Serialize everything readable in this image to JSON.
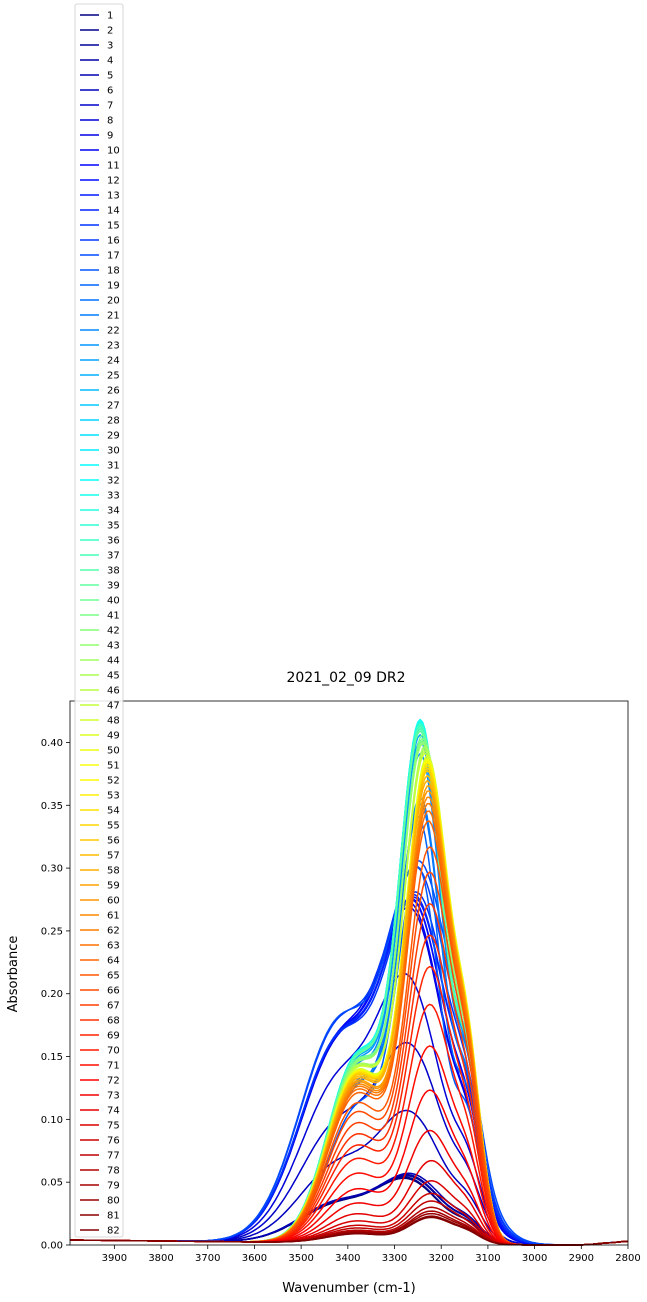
{
  "chart_data": {
    "type": "line",
    "title": "2021_02_09 DR2",
    "xlabel": "Wavenumber (cm-1)",
    "ylabel": "Absorbance",
    "xlim": [
      3995,
      2800
    ],
    "ylim": [
      0.0,
      0.433
    ],
    "x_reversed": true,
    "xticks": [
      3900,
      3800,
      3700,
      3600,
      3500,
      3400,
      3300,
      3200,
      3100,
      3000,
      2900,
      2800
    ],
    "yticks": [
      0.0,
      0.05,
      0.1,
      0.15,
      0.2,
      0.25,
      0.3,
      0.35,
      0.4
    ],
    "ytick_labels": [
      "0.00",
      "0.05",
      "0.10",
      "0.15",
      "0.20",
      "0.25",
      "0.30",
      "0.35",
      "0.40"
    ],
    "legend_position": "top-left, above plot area",
    "colormap": "jet",
    "series_count": 82,
    "series_names": [
      "1",
      "2",
      "3",
      "4",
      "5",
      "6",
      "7",
      "8",
      "9",
      "10",
      "11",
      "12",
      "13",
      "14",
      "15",
      "16",
      "17",
      "18",
      "19",
      "20",
      "21",
      "22",
      "23",
      "24",
      "25",
      "26",
      "27",
      "28",
      "29",
      "30",
      "31",
      "32",
      "33",
      "34",
      "35",
      "36",
      "37",
      "38",
      "39",
      "40",
      "41",
      "42",
      "43",
      "44",
      "45",
      "46",
      "47",
      "48",
      "49",
      "50",
      "51",
      "52",
      "53",
      "54",
      "55",
      "56",
      "57",
      "58",
      "59",
      "60",
      "61",
      "62",
      "63",
      "64",
      "65",
      "66",
      "67",
      "68",
      "69",
      "70",
      "71",
      "72",
      "73",
      "74",
      "75",
      "76",
      "77",
      "78",
      "79",
      "80",
      "81",
      "82"
    ],
    "series_peaks": [
      0.052,
      0.053,
      0.054,
      0.055,
      0.056,
      0.106,
      0.16,
      0.215,
      0.268,
      0.272,
      0.274,
      0.275,
      0.276,
      0.278,
      0.28,
      0.3,
      0.305,
      0.3,
      0.34,
      0.35,
      0.355,
      0.39,
      0.4,
      0.405,
      0.41,
      0.412,
      0.414,
      0.415,
      0.416,
      0.417,
      0.417,
      0.417,
      0.416,
      0.415,
      0.414,
      0.413,
      0.412,
      0.41,
      0.408,
      0.405,
      0.402,
      0.4,
      0.398,
      0.396,
      0.394,
      0.392,
      0.39,
      0.388,
      0.386,
      0.385,
      0.384,
      0.383,
      0.382,
      0.38,
      0.378,
      0.376,
      0.372,
      0.368,
      0.364,
      0.36,
      0.355,
      0.35,
      0.344,
      0.336,
      0.315,
      0.295,
      0.27,
      0.245,
      0.22,
      0.19,
      0.157,
      0.122,
      0.09,
      0.066,
      0.05,
      0.04,
      0.034,
      0.029,
      0.026,
      0.024,
      0.022,
      0.021
    ],
    "series_peak_x": [
      3280,
      3280,
      3275,
      3275,
      3270,
      3275,
      3275,
      3280,
      3270,
      3270,
      3265,
      3265,
      3260,
      3260,
      3255,
      3255,
      3250,
      3250,
      3250,
      3245,
      3245,
      3245,
      3245,
      3245,
      3245,
      3245,
      3245,
      3245,
      3245,
      3245,
      3245,
      3245,
      3245,
      3245,
      3245,
      3245,
      3245,
      3245,
      3245,
      3240,
      3240,
      3240,
      3240,
      3235,
      3235,
      3235,
      3235,
      3230,
      3230,
      3230,
      3230,
      3230,
      3230,
      3230,
      3230,
      3230,
      3230,
      3230,
      3228,
      3228,
      3228,
      3228,
      3228,
      3228,
      3225,
      3225,
      3225,
      3225,
      3225,
      3225,
      3225,
      3225,
      3225,
      3222,
      3222,
      3222,
      3222,
      3222,
      3222,
      3222,
      3222,
      3222
    ]
  }
}
